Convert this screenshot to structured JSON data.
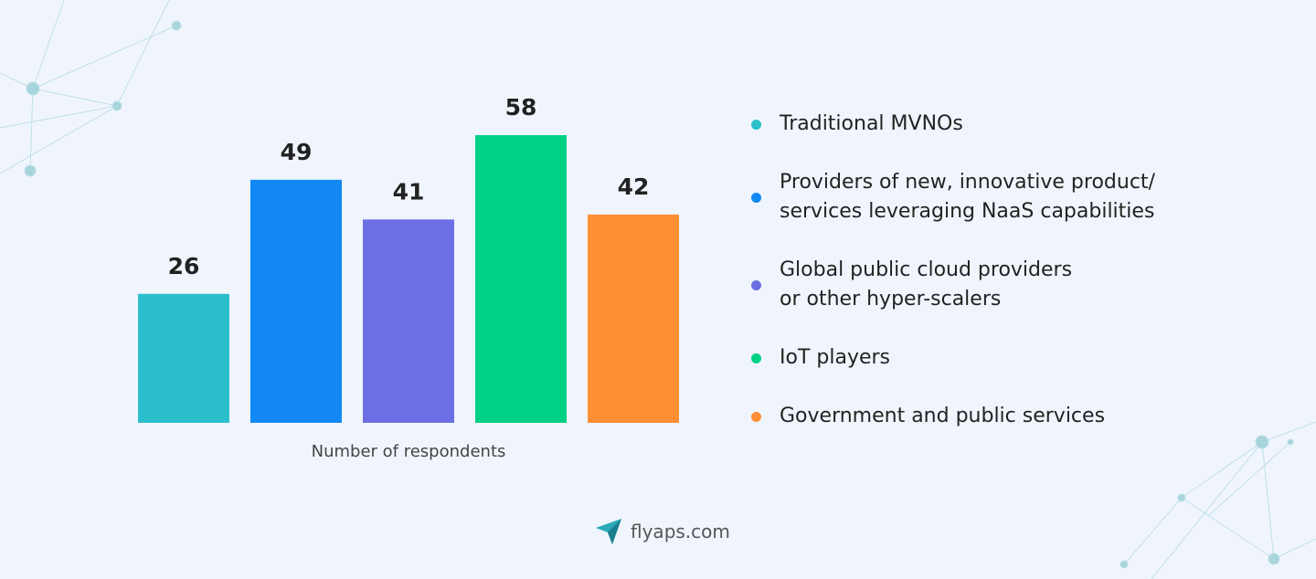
{
  "chart_data": {
    "type": "bar",
    "x_label": "Number of respondents",
    "categories": [
      "Traditional MVNOs",
      "Providers of new, innovative product/\nservices leveraging NaaS capabilities",
      "Global public cloud providers\nor other hyper-scalers",
      "IoT players",
      "Government and public services"
    ],
    "values": [
      26,
      49,
      41,
      58,
      42
    ],
    "colors": [
      "#2bbfcc",
      "#1288f5",
      "#6b6fe3",
      "#00d184",
      "#ff8f35"
    ]
  },
  "brand": "flyaps.com"
}
